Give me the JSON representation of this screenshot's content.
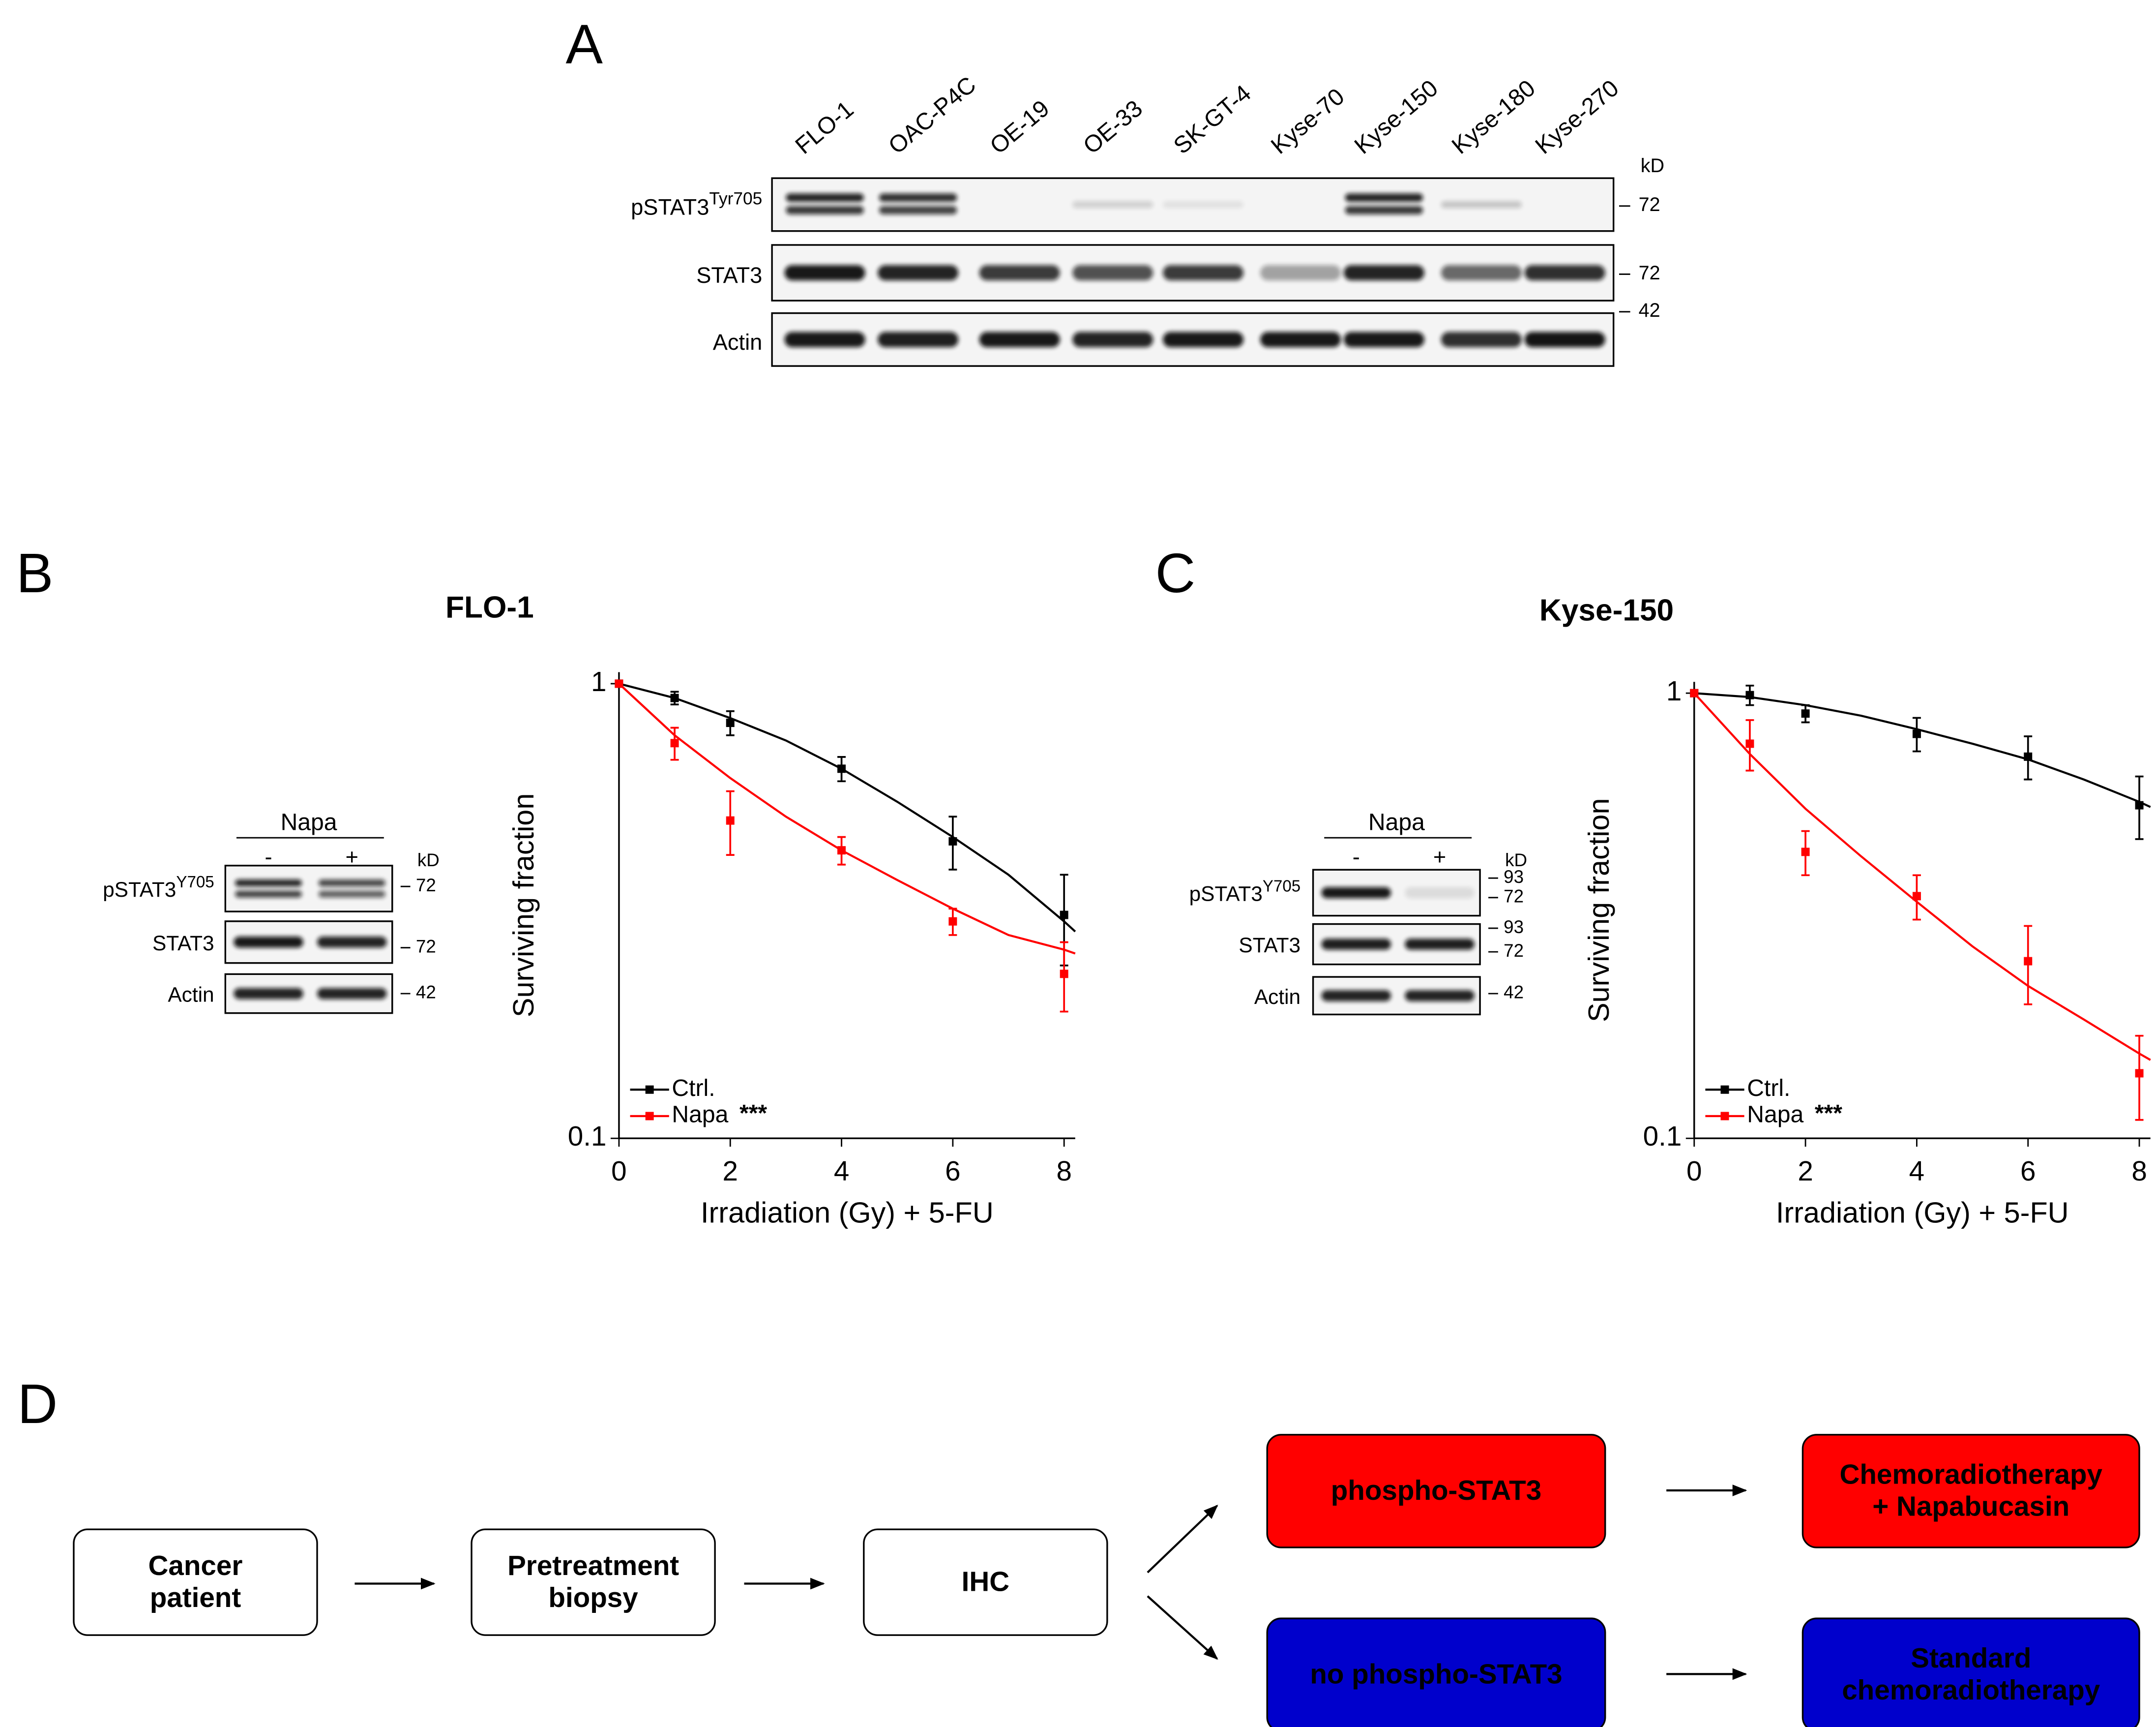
{
  "panel_a": {
    "label": "A",
    "lanes": [
      "FLO-1",
      "OAC-P4C",
      "OE-19",
      "OE-33",
      "SK-GT-4",
      "Kyse-70",
      "Kyse-150",
      "Kyse-180",
      "Kyse-270"
    ],
    "unit": "kD",
    "rows": [
      {
        "name": "pSTAT3",
        "superscript": "Tyr705",
        "marker": "72"
      },
      {
        "name": "STAT3",
        "marker": "72"
      },
      {
        "name": "Actin",
        "marker": "42"
      }
    ]
  },
  "panel_b": {
    "label": "B",
    "title": "FLO-1",
    "blot": {
      "treatment": "Napa",
      "lanes": [
        "-",
        "+"
      ],
      "unit": "kD",
      "rows": [
        {
          "name": "pSTAT3",
          "superscript": "Y705",
          "markers": [
            "72"
          ]
        },
        {
          "name": "STAT3",
          "markers": [
            "72"
          ]
        },
        {
          "name": "Actin",
          "markers": [
            "42"
          ]
        }
      ]
    },
    "chart_data": {
      "type": "scatter",
      "x_label": "Irradiation (Gy) + 5-FU",
      "y_label": "Surviving fraction",
      "log_y": true,
      "xlim": [
        0,
        8.2
      ],
      "ylim": [
        0.1,
        1.06
      ],
      "xticks": [
        0,
        2,
        4,
        6,
        8
      ],
      "yticks": [
        0.1,
        1
      ],
      "x": [
        0,
        1,
        2,
        4,
        6,
        8
      ],
      "fit_x": [
        0,
        1,
        2,
        3,
        4,
        5,
        6,
        7,
        8,
        8.2
      ],
      "series": [
        {
          "name": "Ctrl.",
          "color": "#000000",
          "values": [
            1,
            0.93,
            0.82,
            0.65,
            0.45,
            0.31
          ],
          "errors": [
            0,
            0.03,
            0.05,
            0.04,
            0.06,
            0.07
          ],
          "fit_values": [
            1,
            0.93,
            0.84,
            0.75,
            0.65,
            0.55,
            0.46,
            0.38,
            0.3,
            0.285
          ]
        },
        {
          "name": "Napa",
          "color": "#ff0000",
          "annotation": "***",
          "values": [
            1,
            0.74,
            0.5,
            0.43,
            0.3,
            0.23
          ],
          "errors": [
            0,
            0.06,
            0.08,
            0.03,
            0.02,
            0.04
          ],
          "fit_values": [
            1,
            0.77,
            0.62,
            0.51,
            0.43,
            0.37,
            0.32,
            0.28,
            0.26,
            0.255
          ]
        }
      ]
    }
  },
  "panel_c": {
    "label": "C",
    "title": "Kyse-150",
    "blot": {
      "treatment": "Napa",
      "lanes": [
        "-",
        "+"
      ],
      "unit": "kD",
      "rows": [
        {
          "name": "pSTAT3",
          "superscript": "Y705",
          "markers": [
            "93",
            "72"
          ]
        },
        {
          "name": "STAT3",
          "markers": [
            "93",
            "72"
          ]
        },
        {
          "name": "Actin",
          "markers": [
            "42"
          ]
        }
      ]
    },
    "chart_data": {
      "type": "scatter",
      "x_label": "Irradiation (Gy) + 5-FU",
      "y_label": "Surviving fraction",
      "log_y": true,
      "xlim": [
        0,
        8.2
      ],
      "ylim": [
        0.1,
        1.06
      ],
      "xticks": [
        0,
        2,
        4,
        6,
        8
      ],
      "yticks": [
        0.1,
        1
      ],
      "x": [
        0,
        1,
        2,
        4,
        6,
        8
      ],
      "fit_x": [
        0,
        1,
        2,
        3,
        4,
        5,
        6,
        7,
        8,
        8.2
      ],
      "series": [
        {
          "name": "Ctrl.",
          "color": "#000000",
          "values": [
            1,
            0.99,
            0.9,
            0.81,
            0.72,
            0.56
          ],
          "errors": [
            0,
            0.05,
            0.04,
            0.07,
            0.08,
            0.09
          ],
          "fit_values": [
            1,
            0.98,
            0.94,
            0.89,
            0.83,
            0.77,
            0.71,
            0.64,
            0.57,
            0.555
          ]
        },
        {
          "name": "Napa",
          "color": "#ff0000",
          "annotation": "***",
          "values": [
            1,
            0.77,
            0.44,
            0.35,
            0.25,
            0.14
          ],
          "errors": [
            0,
            0.1,
            0.05,
            0.04,
            0.05,
            0.03
          ],
          "fit_values": [
            1,
            0.73,
            0.55,
            0.43,
            0.34,
            0.27,
            0.22,
            0.185,
            0.155,
            0.15
          ]
        }
      ]
    }
  },
  "panel_d": {
    "label": "D",
    "nodes": [
      {
        "lines": [
          "Cancer",
          "patient"
        ],
        "fill": "#ffffff",
        "text_color": "#000000"
      },
      {
        "lines": [
          "Pretreatment",
          "biopsy"
        ],
        "fill": "#ffffff",
        "text_color": "#000000"
      },
      {
        "lines": [
          "IHC"
        ],
        "fill": "#ffffff",
        "text_color": "#000000"
      },
      {
        "lines": [
          "phospho-STAT3"
        ],
        "fill": "#ff0000",
        "text_color": "#ffffff"
      },
      {
        "lines": [
          "no phospho-STAT3"
        ],
        "fill": "#0000cc",
        "text_color": "#ffffff"
      },
      {
        "lines": [
          "Chemoradiotherapy",
          "+ Napabucasin"
        ],
        "fill": "#ff0000",
        "text_color": "#ffffff"
      },
      {
        "lines": [
          "Standard",
          "chemoradiotherapy"
        ],
        "fill": "#0000cc",
        "text_color": "#ffffff"
      }
    ]
  }
}
